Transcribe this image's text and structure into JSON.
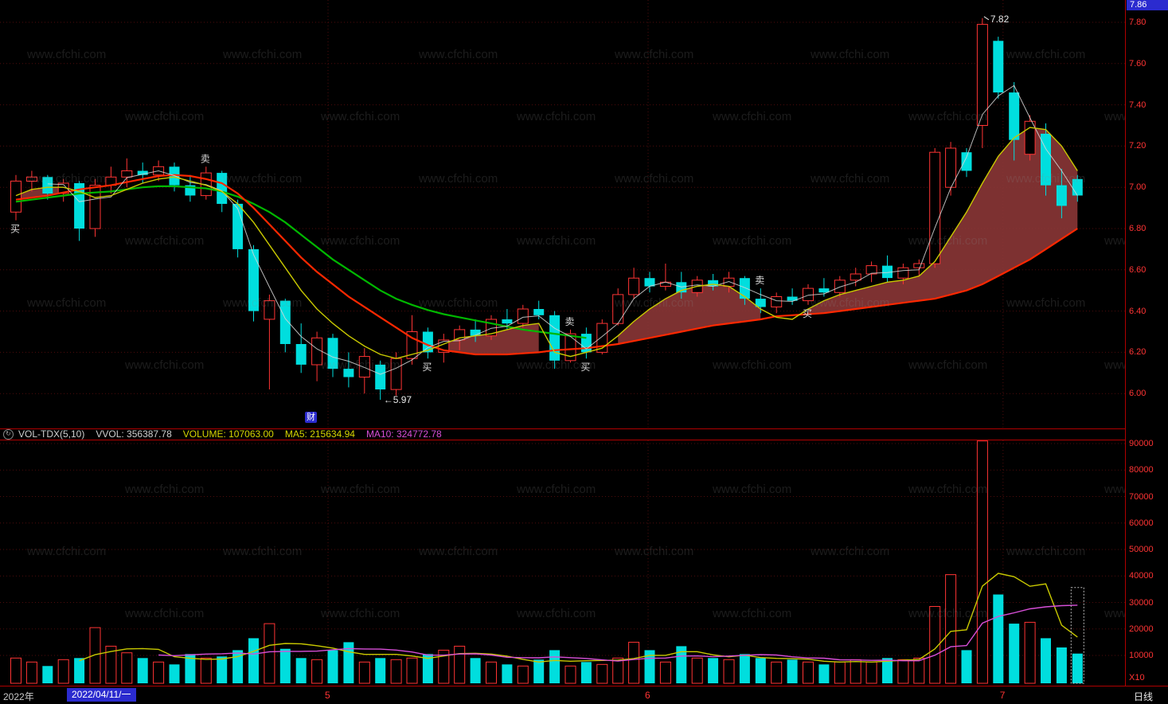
{
  "watermark": {
    "text": "www.cfchi.com"
  },
  "top_right_price": {
    "value": "7.86"
  },
  "price_pane": {
    "cai_badge": "财"
  },
  "volume_pane": {
    "scale_label": "X10"
  },
  "volume_header": {
    "icon": "↻",
    "indicator": "VOL-TDX(5,10)",
    "vvol": "VVOL: 356387.78",
    "volume": "VOLUME: 107063.00",
    "ma5": "MA5: 215634.94",
    "ma10": "MA10: 324772.78"
  },
  "bottom_axis": {
    "year": "2022年",
    "date_box": "2022/04/11/一",
    "period": "日线"
  },
  "colors": {
    "grid": "#4f0c0c",
    "up": "#ff3434",
    "down": "#00dede",
    "ma_green": "#00b800",
    "ma_yellow": "#c9c900",
    "ma_red": "#ff2800",
    "ma_white": "#d8d8d8",
    "band": "#8b3636",
    "axis_text": "#ff3434",
    "accent_blue": "#2b2bcf",
    "vol_ma5": "#c9c900",
    "vol_ma10": "#d84fd8",
    "watermark": "#8a8a8a",
    "frame": "#b00000",
    "signal": "#dcdcdc"
  },
  "chart_data": [
    {
      "type": "candlestick",
      "title": "",
      "ylim": [
        5.9,
        7.86
      ],
      "y_axis_labels": [
        "7.80",
        "7.60",
        "7.40",
        "7.20",
        "7.00",
        "6.80",
        "6.60",
        "6.40",
        "6.20",
        "6.00"
      ],
      "months": [
        {
          "x": 19.7,
          "label": "5"
        },
        {
          "x": 39.9,
          "label": "6"
        },
        {
          "x": 62.3,
          "label": "7"
        }
      ],
      "candles": [
        [
          6.88,
          7.06,
          6.84,
          7.03
        ],
        [
          7.03,
          7.08,
          6.98,
          7.05
        ],
        [
          7.05,
          7.06,
          6.94,
          6.97
        ],
        [
          6.97,
          7.04,
          6.93,
          7.02
        ],
        [
          7.02,
          7.03,
          6.74,
          6.8
        ],
        [
          6.8,
          7.04,
          6.76,
          7.01
        ],
        [
          7.01,
          7.1,
          6.97,
          7.05
        ],
        [
          7.05,
          7.14,
          7.0,
          7.08
        ],
        [
          7.08,
          7.12,
          7.02,
          7.06
        ],
        [
          7.06,
          7.13,
          7.03,
          7.1
        ],
        [
          7.1,
          7.12,
          6.98,
          7.01
        ],
        [
          7.01,
          7.06,
          6.93,
          6.96
        ],
        [
          6.96,
          7.1,
          6.94,
          7.07
        ],
        [
          7.07,
          7.08,
          6.88,
          6.92
        ],
        [
          6.92,
          6.94,
          6.66,
          6.7
        ],
        [
          6.7,
          6.72,
          6.35,
          6.4
        ],
        [
          6.36,
          6.48,
          6.02,
          6.45
        ],
        [
          6.45,
          6.46,
          6.2,
          6.24
        ],
        [
          6.24,
          6.34,
          6.1,
          6.14
        ],
        [
          6.14,
          6.3,
          6.06,
          6.27
        ],
        [
          6.27,
          6.29,
          6.08,
          6.12
        ],
        [
          6.12,
          6.2,
          6.03,
          6.08
        ],
        [
          6.08,
          6.22,
          6.0,
          6.18
        ],
        [
          6.14,
          6.16,
          5.97,
          6.02
        ],
        [
          6.02,
          6.2,
          5.99,
          6.17
        ],
        [
          6.17,
          6.38,
          6.14,
          6.3
        ],
        [
          6.3,
          6.32,
          6.17,
          6.2
        ],
        [
          6.2,
          6.29,
          6.15,
          6.26
        ],
        [
          6.26,
          6.33,
          6.21,
          6.31
        ],
        [
          6.31,
          6.36,
          6.25,
          6.28
        ],
        [
          6.28,
          6.38,
          6.26,
          6.36
        ],
        [
          6.36,
          6.41,
          6.31,
          6.34
        ],
        [
          6.34,
          6.43,
          6.32,
          6.41
        ],
        [
          6.41,
          6.45,
          6.36,
          6.38
        ],
        [
          6.38,
          6.4,
          6.12,
          6.16
        ],
        [
          6.16,
          6.31,
          6.15,
          6.29
        ],
        [
          6.29,
          6.32,
          6.17,
          6.2
        ],
        [
          6.2,
          6.36,
          6.19,
          6.34
        ],
        [
          6.34,
          6.51,
          6.33,
          6.48
        ],
        [
          6.48,
          6.61,
          6.46,
          6.56
        ],
        [
          6.56,
          6.59,
          6.49,
          6.52
        ],
        [
          6.52,
          6.63,
          6.5,
          6.54
        ],
        [
          6.54,
          6.59,
          6.46,
          6.49
        ],
        [
          6.49,
          6.57,
          6.47,
          6.55
        ],
        [
          6.55,
          6.58,
          6.5,
          6.52
        ],
        [
          6.52,
          6.59,
          6.49,
          6.56
        ],
        [
          6.56,
          6.57,
          6.43,
          6.46
        ],
        [
          6.46,
          6.51,
          6.39,
          6.42
        ],
        [
          6.42,
          6.49,
          6.39,
          6.47
        ],
        [
          6.47,
          6.51,
          6.43,
          6.45
        ],
        [
          6.45,
          6.53,
          6.43,
          6.51
        ],
        [
          6.51,
          6.56,
          6.47,
          6.49
        ],
        [
          6.49,
          6.57,
          6.47,
          6.55
        ],
        [
          6.55,
          6.61,
          6.52,
          6.58
        ],
        [
          6.58,
          6.64,
          6.54,
          6.62
        ],
        [
          6.62,
          6.67,
          6.54,
          6.56
        ],
        [
          6.56,
          6.63,
          6.53,
          6.61
        ],
        [
          6.61,
          6.65,
          6.57,
          6.63
        ],
        [
          6.63,
          7.19,
          6.61,
          7.17
        ],
        [
          7.0,
          7.22,
          6.96,
          7.19
        ],
        [
          7.17,
          7.19,
          7.05,
          7.08
        ],
        [
          7.3,
          7.82,
          7.19,
          7.79
        ],
        [
          7.71,
          7.73,
          7.43,
          7.46
        ],
        [
          7.46,
          7.51,
          7.13,
          7.23
        ],
        [
          7.16,
          7.35,
          7.13,
          7.32
        ],
        [
          7.26,
          7.31,
          6.96,
          7.01
        ],
        [
          7.01,
          7.09,
          6.85,
          6.91
        ],
        [
          7.04,
          7.06,
          6.93,
          6.96
        ]
      ],
      "ma_yellow": [
        6.96,
        6.99,
        7.0,
        7.0,
        6.98,
        6.95,
        6.96,
        6.99,
        7.02,
        7.04,
        7.05,
        7.03,
        7.01,
        6.98,
        6.92,
        6.83,
        6.72,
        6.61,
        6.5,
        6.41,
        6.34,
        6.28,
        6.23,
        6.19,
        6.17,
        6.19,
        6.21,
        6.24,
        6.27,
        6.28,
        6.29,
        6.31,
        6.33,
        6.34,
        6.2,
        6.18,
        6.2,
        6.22,
        6.28,
        6.35,
        6.41,
        6.46,
        6.5,
        6.52,
        6.53,
        6.52,
        6.47,
        6.41,
        6.37,
        6.36,
        6.41,
        6.45,
        6.48,
        6.5,
        6.52,
        6.54,
        6.55,
        6.57,
        6.64,
        6.76,
        6.88,
        7.02,
        7.15,
        7.24,
        7.29,
        7.28,
        7.2,
        7.08
      ],
      "ma_red": [
        6.94,
        6.95,
        6.96,
        6.975,
        6.99,
        7.0,
        7.01,
        7.025,
        7.04,
        7.055,
        7.06,
        7.055,
        7.04,
        7.02,
        6.97,
        6.9,
        6.82,
        6.74,
        6.66,
        6.59,
        6.53,
        6.47,
        6.42,
        6.37,
        6.32,
        6.27,
        6.235,
        6.21,
        6.2,
        6.19,
        6.19,
        6.19,
        6.195,
        6.2,
        6.21,
        6.215,
        6.22,
        6.23,
        6.24,
        6.255,
        6.27,
        6.285,
        6.3,
        6.315,
        6.33,
        6.34,
        6.35,
        6.36,
        6.375,
        6.38,
        6.385,
        6.39,
        6.4,
        6.41,
        6.42,
        6.43,
        6.44,
        6.45,
        6.46,
        6.48,
        6.5,
        6.53,
        6.57,
        6.61,
        6.65,
        6.7,
        6.75,
        6.8
      ],
      "ma_green": [
        6.93,
        6.94,
        6.95,
        6.96,
        6.97,
        6.975,
        6.98,
        6.99,
        7.0,
        7.005,
        7.005,
        7.0,
        6.995,
        6.98,
        6.955,
        6.92,
        6.88,
        6.83,
        6.77,
        6.71,
        6.65,
        6.6,
        6.55,
        6.5,
        6.46,
        6.43,
        6.405,
        6.385,
        6.37,
        6.355,
        6.34,
        6.325,
        6.31,
        6.3,
        6.29,
        6.28,
        6.27,
        null,
        null,
        null,
        null,
        null,
        null,
        null,
        null,
        null,
        null,
        null,
        null,
        null,
        null,
        null,
        null,
        null,
        null,
        null,
        null,
        null,
        null,
        null,
        null,
        null,
        null,
        null,
        null,
        null,
        null,
        null
      ],
      "signals": [
        {
          "index": 0,
          "label": "买",
          "position": "below"
        },
        {
          "index": 12,
          "label": "卖",
          "position": "above"
        },
        {
          "index": 26,
          "label": "买",
          "position": "below"
        },
        {
          "index": 35,
          "label": "卖",
          "position": "above"
        },
        {
          "index": 36,
          "label": "买",
          "position": "below"
        },
        {
          "index": 47,
          "label": "卖",
          "position": "above"
        },
        {
          "index": 50,
          "label": "买",
          "position": "below"
        }
      ],
      "annotations": {
        "high_label": "7.82",
        "high_index": 61,
        "high_value": 7.82,
        "low_label": "←5.97",
        "low_index": 23,
        "low_value": 5.97
      }
    },
    {
      "type": "bar",
      "name": "VOL-TDX(5,10)",
      "y_axis_labels": [
        "90000",
        "80000",
        "70000",
        "60000",
        "50000",
        "40000",
        "30000",
        "20000",
        "10000"
      ],
      "scale": "X10",
      "values": [
        9000,
        7500,
        6000,
        8400,
        9000,
        20500,
        13500,
        11000,
        9000,
        7500,
        6600,
        10500,
        9000,
        9600,
        12000,
        16500,
        22000,
        12500,
        9000,
        8400,
        12000,
        15000,
        7500,
        9000,
        8400,
        9000,
        10500,
        12000,
        13500,
        9000,
        7500,
        6600,
        6000,
        8400,
        12000,
        6000,
        7500,
        6600,
        9000,
        15000,
        12000,
        7500,
        13500,
        9000,
        9000,
        8400,
        10500,
        9000,
        7500,
        8400,
        7500,
        6600,
        7500,
        8400,
        7500,
        9000,
        8400,
        9000,
        28500,
        40500,
        12000,
        91000,
        33000,
        22000,
        22500,
        16500,
        13000,
        10706
      ],
      "cursor_box": {
        "index": 67,
        "top_value": 35639
      }
    }
  ]
}
